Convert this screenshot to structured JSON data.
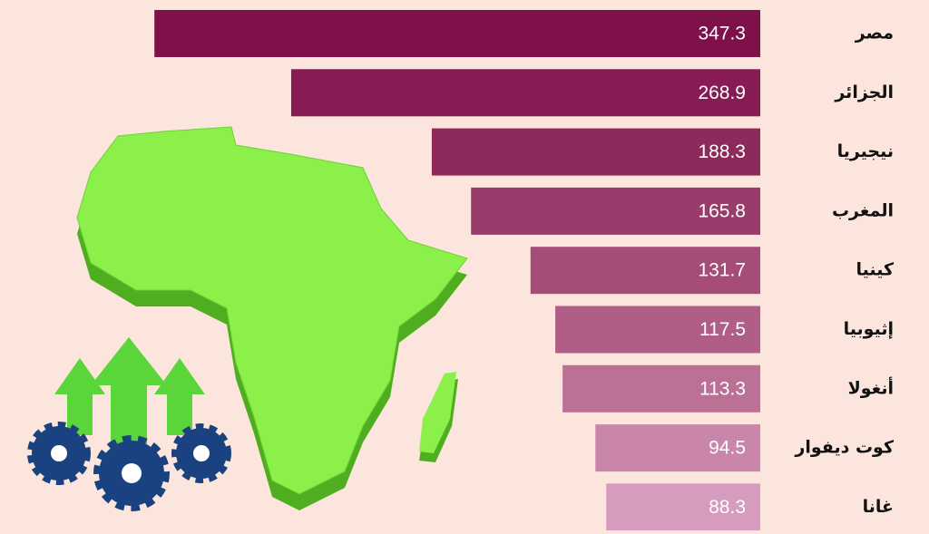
{
  "chart_data": {
    "type": "barh",
    "categories": [
      "مصر",
      "الجزائر",
      "نيجيريا",
      "المغرب",
      "كينيا",
      "إثيوبيا",
      "أنغولا",
      "كوت ديفوار",
      "غانا"
    ],
    "values": [
      347.3,
      268.9,
      188.3,
      165.8,
      131.7,
      117.5,
      113.3,
      94.5,
      88.3
    ],
    "colors": [
      "#7e104a",
      "#861c53",
      "#8d2a5c",
      "#9a3c6b",
      "#a54c78",
      "#b05e87",
      "#bb7096",
      "#c985aa",
      "#d69cbd"
    ],
    "xlim": [
      0,
      350
    ]
  }
}
